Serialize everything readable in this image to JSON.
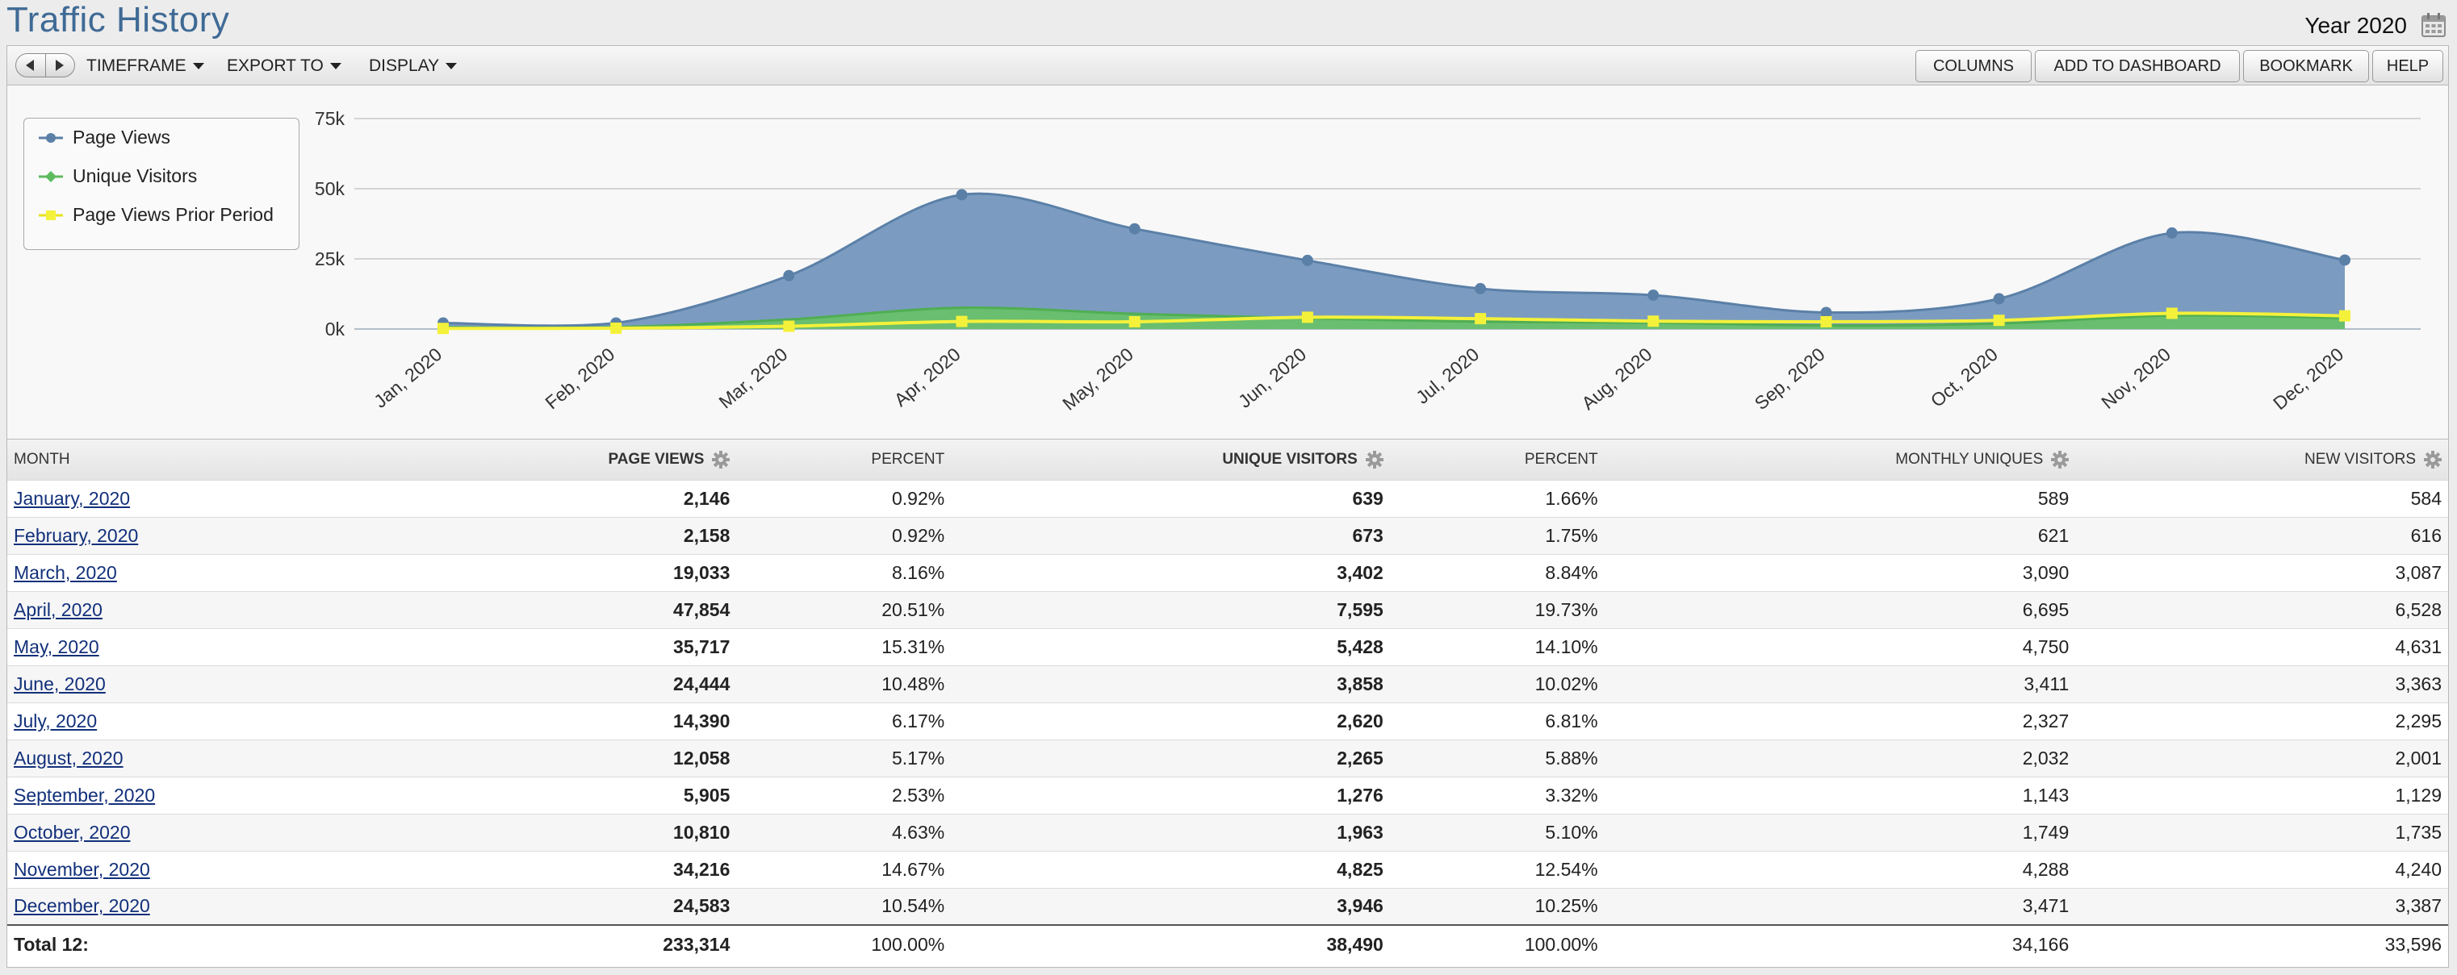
{
  "header": {
    "title": "Traffic History",
    "period": "Year 2020"
  },
  "toolbar": {
    "menus": [
      "TIMEFRAME",
      "EXPORT TO",
      "DISPLAY"
    ],
    "buttons": [
      "COLUMNS",
      "ADD TO DASHBOARD",
      "BOOKMARK",
      "HELP"
    ]
  },
  "colors": {
    "page_views": "#5b80a8",
    "unique_visitors": "#5dbb5f",
    "prior_period": "#f4f13a",
    "link": "#12307a",
    "title": "#3f6a95"
  },
  "chart_data": {
    "type": "area",
    "categories": [
      "Jan, 2020",
      "Feb, 2020",
      "Mar, 2020",
      "Apr, 2020",
      "May, 2020",
      "Jun, 2020",
      "Jul, 2020",
      "Aug, 2020",
      "Sep, 2020",
      "Oct, 2020",
      "Nov, 2020",
      "Dec, 2020"
    ],
    "y_ticks": [
      "0k",
      "25k",
      "50k",
      "75k"
    ],
    "ylim": [
      0,
      75000
    ],
    "grid": true,
    "legend_placement": "top-left",
    "series": [
      {
        "name": "Page Views",
        "values": [
          2146,
          2158,
          19033,
          47854,
          35717,
          24444,
          14390,
          12058,
          5905,
          10810,
          34216,
          24583
        ]
      },
      {
        "name": "Unique Visitors",
        "values": [
          639,
          673,
          3402,
          7595,
          5428,
          3858,
          2620,
          2265,
          1276,
          1963,
          4825,
          3946
        ]
      },
      {
        "name": "Page Views Prior Period",
        "values": [
          200,
          300,
          1000,
          2700,
          2600,
          4200,
          3700,
          2800,
          2600,
          3100,
          5600,
          4700
        ]
      }
    ]
  },
  "table": {
    "headers": [
      "MONTH",
      "PAGE VIEWS",
      "PERCENT",
      "UNIQUE VISITORS",
      "PERCENT",
      "MONTHLY UNIQUES",
      "NEW VISITORS"
    ],
    "rows": [
      [
        "January, 2020",
        "2,146",
        "0.92%",
        "639",
        "1.66%",
        "589",
        "584"
      ],
      [
        "February, 2020",
        "2,158",
        "0.92%",
        "673",
        "1.75%",
        "621",
        "616"
      ],
      [
        "March, 2020",
        "19,033",
        "8.16%",
        "3,402",
        "8.84%",
        "3,090",
        "3,087"
      ],
      [
        "April, 2020",
        "47,854",
        "20.51%",
        "7,595",
        "19.73%",
        "6,695",
        "6,528"
      ],
      [
        "May, 2020",
        "35,717",
        "15.31%",
        "5,428",
        "14.10%",
        "4,750",
        "4,631"
      ],
      [
        "June, 2020",
        "24,444",
        "10.48%",
        "3,858",
        "10.02%",
        "3,411",
        "3,363"
      ],
      [
        "July, 2020",
        "14,390",
        "6.17%",
        "2,620",
        "6.81%",
        "2,327",
        "2,295"
      ],
      [
        "August, 2020",
        "12,058",
        "5.17%",
        "2,265",
        "5.88%",
        "2,032",
        "2,001"
      ],
      [
        "September, 2020",
        "5,905",
        "2.53%",
        "1,276",
        "3.32%",
        "1,143",
        "1,129"
      ],
      [
        "October, 2020",
        "10,810",
        "4.63%",
        "1,963",
        "5.10%",
        "1,749",
        "1,735"
      ],
      [
        "November, 2020",
        "34,216",
        "14.67%",
        "4,825",
        "12.54%",
        "4,288",
        "4,240"
      ],
      [
        "December, 2020",
        "24,583",
        "10.54%",
        "3,946",
        "10.25%",
        "3,471",
        "3,387"
      ]
    ],
    "total": [
      "Total 12:",
      "233,314",
      "100.00%",
      "38,490",
      "100.00%",
      "34,166",
      "33,596"
    ]
  }
}
